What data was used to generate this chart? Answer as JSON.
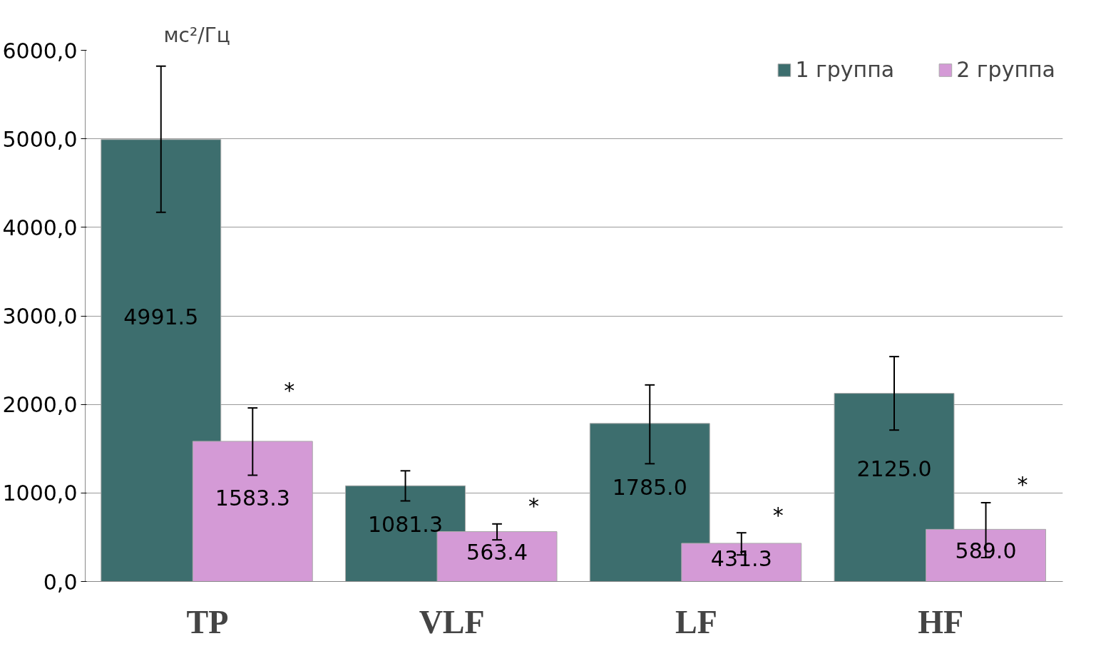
{
  "chart_data": {
    "type": "bar",
    "ylabel": "мс²/Гц",
    "categories": [
      "TP",
      "VLF",
      "LF",
      "HF"
    ],
    "series": [
      {
        "name": "1 группа",
        "color": "#3d6e6e",
        "values": [
          4991.5,
          1081.3,
          1785.0,
          2125.0
        ],
        "errors": [
          [
            4170,
            5820
          ],
          [
            910,
            1250
          ],
          [
            1330,
            2220
          ],
          [
            1710,
            2540
          ]
        ],
        "value_labels": [
          "4991.5",
          "1081.3",
          "1785.0",
          "2125.0"
        ]
      },
      {
        "name": "2 группа",
        "color": "#d49ad6",
        "values": [
          1583.3,
          563.4,
          431.3,
          589.0
        ],
        "errors": [
          [
            1200,
            1960
          ],
          [
            470,
            650
          ],
          [
            300,
            550
          ],
          [
            270,
            890
          ]
        ],
        "value_labels": [
          "1583.3",
          "563.4",
          "431.3",
          "589.0"
        ]
      }
    ],
    "ylim": [
      0,
      6000
    ],
    "yticks": [
      {
        "value": 0,
        "label": "0,0"
      },
      {
        "value": 1000,
        "label": "1000,0"
      },
      {
        "value": 2000,
        "label": "2000,0"
      },
      {
        "value": 3000,
        "label": "3000,0"
      },
      {
        "value": 4000,
        "label": "4000,0"
      },
      {
        "value": 5000,
        "label": "5000,0"
      },
      {
        "value": 6000,
        "label": "6000,0"
      }
    ],
    "annotations": [
      "*",
      "*",
      "*",
      "*"
    ],
    "grid": "y",
    "legend": "top right"
  }
}
